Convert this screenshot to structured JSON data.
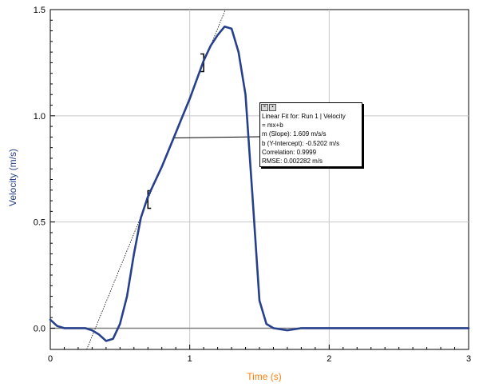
{
  "chart_data": {
    "type": "line",
    "xlabel": "Time (s)",
    "ylabel": "Velocity (m/s)",
    "xlim": [
      0,
      3
    ],
    "ylim": [
      -0.1,
      1.5
    ],
    "x_ticks": [
      "0",
      "1",
      "2",
      "3"
    ],
    "y_ticks": [
      "0.0",
      "0.5",
      "1.0",
      "1.5"
    ],
    "grid": true,
    "colors": {
      "series": "#27408b",
      "xlabel": "#ff7f0e",
      "ylabel": "#27408b",
      "grid": "#c8c8c8",
      "zero_line": "#808080",
      "fit_line": "#000000"
    },
    "series": [
      {
        "name": "Run 1 | Velocity",
        "x": [
          0,
          0.05,
          0.1,
          0.15,
          0.2,
          0.25,
          0.3,
          0.35,
          0.4,
          0.45,
          0.5,
          0.55,
          0.6,
          0.65,
          0.7,
          0.75,
          0.8,
          0.85,
          0.9,
          0.95,
          1.0,
          1.05,
          1.1,
          1.15,
          1.2,
          1.25,
          1.3,
          1.35,
          1.4,
          1.45,
          1.5,
          1.55,
          1.6,
          1.7,
          1.8,
          2.0,
          2.2,
          2.4,
          2.6,
          2.8,
          3.0
        ],
        "y": [
          0.04,
          0.01,
          0.0,
          0.0,
          0.0,
          0.0,
          -0.01,
          -0.03,
          -0.06,
          -0.05,
          0.02,
          0.15,
          0.35,
          0.52,
          0.62,
          0.69,
          0.76,
          0.84,
          0.92,
          1.0,
          1.08,
          1.17,
          1.26,
          1.33,
          1.38,
          1.42,
          1.41,
          1.3,
          1.1,
          0.62,
          0.13,
          0.02,
          0.0,
          -0.01,
          0.0,
          0.0,
          0.0,
          0.0,
          0.0,
          0.0,
          0.0
        ]
      }
    ],
    "linear_fit": {
      "slope": 1.609,
      "intercept": -0.5202,
      "range": [
        0.7,
        1.1
      ],
      "header": "Linear Fit for: Run 1 | Velocity",
      "equation": " = mx+b",
      "slope_text": "m (Slope): 1.609 m/s/s",
      "intercept_text": "b (Y-Intercept): -0.5202 m/s",
      "correlation_text": "Correlation: 0.9999",
      "rmse_text": "RMSE: 0.002282 m/s"
    }
  }
}
